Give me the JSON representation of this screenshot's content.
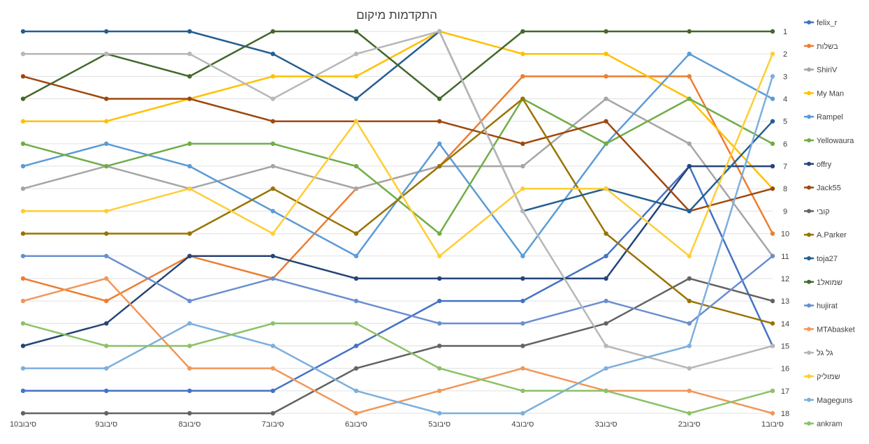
{
  "chart_data": {
    "type": "line",
    "title": "התקדמות מיקום",
    "categories": [
      "סיבוב1",
      "סיבוב2",
      "סיבוב3",
      "סיבוב4",
      "סיבוב5",
      "סיבוב6",
      "סיבוב7",
      "סיבוב8",
      "סיבוב9",
      "סיבוב10"
    ],
    "x_axis_reversed": true,
    "y_axis_position": "right",
    "y_reversed": true,
    "ylim": [
      1,
      18
    ],
    "y_ticks": [
      1,
      2,
      3,
      4,
      5,
      6,
      7,
      8,
      9,
      10,
      11,
      12,
      13,
      14,
      15,
      16,
      17,
      18
    ],
    "grid": true,
    "legend_position": "right",
    "series": [
      {
        "name": "felix_r",
        "color": "#4472C4",
        "values": [
          15,
          7,
          11,
          13,
          13,
          15,
          17,
          17,
          17,
          17
        ]
      },
      {
        "name": "בשלות",
        "color": "#ED7D31",
        "values": [
          10,
          3,
          3,
          3,
          7,
          8,
          12,
          11,
          13,
          12
        ]
      },
      {
        "name": "ShiriV",
        "color": "#A5A5A5",
        "values": [
          11,
          6,
          4,
          7,
          7,
          8,
          7,
          8,
          7,
          8
        ]
      },
      {
        "name": "My Man",
        "color": "#FFC000",
        "values": [
          8,
          4,
          2,
          2,
          1,
          3,
          3,
          4,
          5,
          5
        ]
      },
      {
        "name": "Rampel",
        "color": "#5B9BD5",
        "values": [
          4,
          2,
          6,
          11,
          6,
          11,
          9,
          7,
          6,
          7
        ]
      },
      {
        "name": "Yellowaura",
        "color": "#70AD47",
        "values": [
          6,
          4,
          6,
          4,
          10,
          7,
          6,
          6,
          7,
          6
        ]
      },
      {
        "name": "offry",
        "color": "#264478",
        "values": [
          7,
          7,
          12,
          12,
          12,
          12,
          11,
          11,
          14,
          15
        ]
      },
      {
        "name": "Jack55",
        "color": "#9E480E",
        "values": [
          8,
          9,
          5,
          6,
          5,
          5,
          5,
          4,
          4,
          3
        ]
      },
      {
        "name": "קובי",
        "color": "#636363",
        "values": [
          13,
          12,
          14,
          15,
          15,
          16,
          18,
          18,
          18,
          18
        ]
      },
      {
        "name": "A.Parker",
        "color": "#997300",
        "values": [
          14,
          13,
          10,
          4,
          7,
          10,
          8,
          10,
          10,
          10
        ]
      },
      {
        "name": "toja27",
        "color": "#255E91",
        "values": [
          5,
          9,
          8,
          9,
          1,
          4,
          2,
          1,
          1,
          1
        ]
      },
      {
        "name": "שמואל1",
        "color": "#43682B",
        "values": [
          1,
          1,
          1,
          1,
          4,
          1,
          1,
          3,
          2,
          4
        ]
      },
      {
        "name": "hujirat",
        "color": "#698ED0",
        "values": [
          11,
          14,
          13,
          14,
          14,
          13,
          12,
          13,
          11,
          11
        ]
      },
      {
        "name": "MTAbasket",
        "color": "#F1975A",
        "values": [
          18,
          17,
          17,
          16,
          17,
          18,
          16,
          16,
          12,
          13
        ]
      },
      {
        "name": "גל גל",
        "color": "#B7B7B7",
        "values": [
          15,
          16,
          15,
          9,
          1,
          2,
          4,
          2,
          2,
          2
        ]
      },
      {
        "name": "שמוליק",
        "color": "#FFCD33",
        "values": [
          2,
          11,
          8,
          8,
          11,
          5,
          10,
          8,
          9,
          9
        ]
      },
      {
        "name": "Mageguns",
        "color": "#7CAFDD",
        "values": [
          3,
          15,
          16,
          18,
          18,
          17,
          15,
          14,
          16,
          16
        ]
      },
      {
        "name": "ankram",
        "color": "#8CC168",
        "values": [
          17,
          18,
          17,
          17,
          16,
          14,
          14,
          15,
          15,
          14
        ]
      }
    ]
  }
}
